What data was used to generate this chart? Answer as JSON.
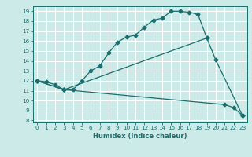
{
  "xlabel": "Humidex (Indice chaleur)",
  "bg_color": "#cceae7",
  "line_color": "#1a6e6e",
  "grid_color": "#ffffff",
  "xlim": [
    -0.5,
    23.5
  ],
  "ylim": [
    7.8,
    19.5
  ],
  "xticks": [
    0,
    1,
    2,
    3,
    4,
    5,
    6,
    7,
    8,
    9,
    10,
    11,
    12,
    13,
    14,
    15,
    16,
    17,
    18,
    19,
    20,
    21,
    22,
    23
  ],
  "yticks": [
    8,
    9,
    10,
    11,
    12,
    13,
    14,
    15,
    16,
    17,
    18,
    19
  ],
  "curve1_x": [
    0,
    1,
    2,
    3,
    4,
    5,
    6,
    7,
    8,
    9,
    10,
    11,
    12,
    13,
    14,
    15,
    16,
    17,
    18,
    19
  ],
  "curve1_y": [
    12.0,
    11.9,
    11.6,
    11.1,
    11.1,
    12.0,
    13.0,
    13.5,
    14.8,
    15.9,
    16.4,
    16.6,
    17.4,
    18.1,
    18.3,
    19.0,
    19.0,
    18.9,
    18.7,
    16.3
  ],
  "curve2_x": [
    0,
    3,
    19,
    20,
    23
  ],
  "curve2_y": [
    12.0,
    11.1,
    16.3,
    14.1,
    8.5
  ],
  "curve3_x": [
    0,
    3,
    21,
    22,
    23
  ],
  "curve3_y": [
    12.0,
    11.1,
    9.6,
    9.3,
    8.5
  ],
  "marker": "D",
  "marker_size": 2.5,
  "linewidth": 0.9,
  "tick_fontsize": 5.2,
  "xlabel_fontsize": 6.0
}
